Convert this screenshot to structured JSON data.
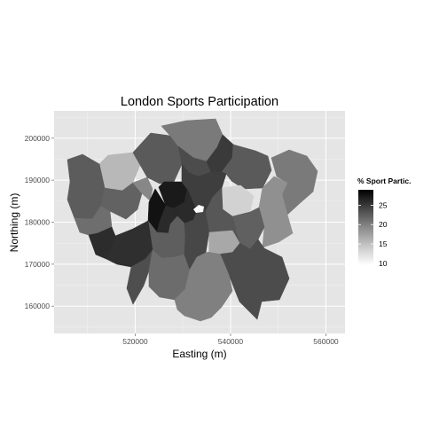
{
  "chart_data": {
    "type": "choropleth",
    "title": "London Sports Participation",
    "xlabel": "Easting (m)",
    "ylabel": "Northing (m)",
    "xlim": [
      503000,
      564000
    ],
    "ylim": [
      153500,
      206500
    ],
    "x_ticks": [
      520000,
      540000,
      560000
    ],
    "y_ticks": [
      160000,
      170000,
      180000,
      190000,
      200000
    ],
    "x_tick_labels": [
      "520000",
      "540000",
      "560000"
    ],
    "y_tick_labels": [
      "160000",
      "170000",
      "180000",
      "190000",
      "200000"
    ],
    "grid": true,
    "legend": {
      "title": "% Sport Partic.",
      "range": [
        9.5,
        29
      ],
      "ticks": [
        10,
        15,
        20,
        25
      ],
      "tick_labels": [
        "10",
        "15",
        "20",
        "25"
      ],
      "color_low": "#ffffff",
      "color_high": "#000000"
    }
  },
  "colors": {
    "panel_bg": "#e5e5e5",
    "grid_major": "#ffffff",
    "grid_minor": "#f2f2f2",
    "tick_text": "#4d4d4d",
    "hole": "#ffffff"
  }
}
